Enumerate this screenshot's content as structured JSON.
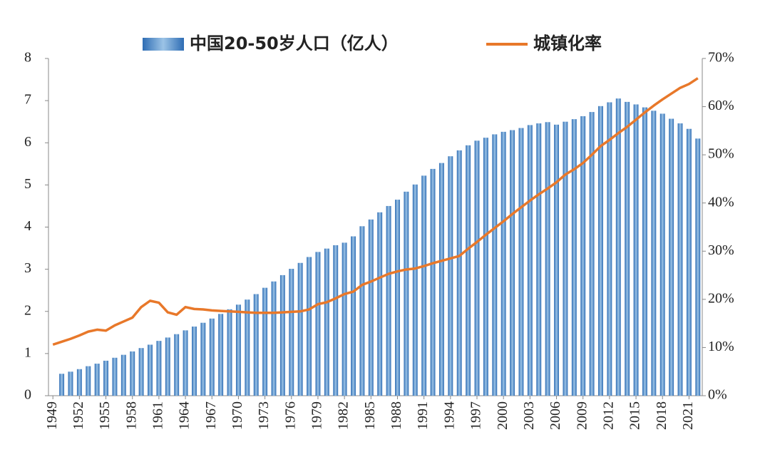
{
  "chart_data": {
    "type": "bar_line",
    "categories": [
      "1949",
      null,
      null,
      "1952",
      null,
      null,
      "1955",
      null,
      null,
      "1958",
      null,
      null,
      "1961",
      null,
      null,
      "1964",
      null,
      null,
      "1967",
      null,
      null,
      "1970",
      null,
      null,
      "1973",
      null,
      null,
      "1976",
      null,
      null,
      "1979",
      null,
      null,
      "1982",
      null,
      null,
      "1985",
      null,
      null,
      "1988",
      null,
      null,
      "1991",
      null,
      null,
      "1994",
      null,
      null,
      "1997",
      null,
      null,
      "2000",
      null,
      null,
      "2003",
      null,
      null,
      "2006",
      null,
      null,
      "2009",
      null,
      null,
      "2012",
      null,
      null,
      "2015",
      null,
      null,
      "2018",
      null,
      null,
      "2021",
      null
    ],
    "series": [
      {
        "name": "中国20-50岁人口（亿人）",
        "type": "bar",
        "color": "#5b9bd5",
        "values": [
          null,
          0.52,
          0.57,
          0.63,
          0.7,
          0.76,
          0.83,
          0.9,
          0.97,
          1.05,
          1.13,
          1.21,
          1.3,
          1.38,
          1.46,
          1.55,
          1.64,
          1.73,
          1.83,
          1.94,
          2.05,
          2.16,
          2.28,
          2.41,
          2.56,
          2.71,
          2.86,
          3.01,
          3.15,
          3.29,
          3.41,
          3.49,
          3.57,
          3.63,
          3.78,
          4.02,
          4.18,
          4.35,
          4.5,
          4.65,
          4.84,
          5.01,
          5.22,
          5.38,
          5.52,
          5.68,
          5.82,
          5.94,
          6.05,
          6.12,
          6.2,
          6.26,
          6.3,
          6.35,
          6.42,
          6.46,
          6.49,
          6.43,
          6.5,
          6.56,
          6.63,
          6.73,
          6.87,
          6.96,
          7.05,
          6.97,
          6.91,
          6.84,
          6.76,
          6.69,
          6.57,
          6.46,
          6.33,
          6.1
        ]
      },
      {
        "name": "城镇化率",
        "type": "line",
        "axis": "y2",
        "color": "#e8782a",
        "values": [
          10.6,
          11.2,
          11.8,
          12.5,
          13.3,
          13.7,
          13.5,
          14.6,
          15.4,
          16.2,
          18.4,
          19.7,
          19.3,
          17.3,
          16.8,
          18.4,
          18.0,
          17.9,
          17.7,
          17.6,
          17.5,
          17.4,
          17.3,
          17.2,
          17.2,
          17.2,
          17.3,
          17.4,
          17.5,
          17.9,
          19.0,
          19.4,
          20.2,
          21.1,
          21.6,
          23.0,
          23.7,
          24.5,
          25.3,
          25.8,
          26.2,
          26.4,
          26.9,
          27.5,
          28.0,
          28.5,
          29.0,
          30.5,
          31.9,
          33.4,
          34.8,
          36.2,
          37.7,
          39.1,
          40.5,
          41.8,
          43.0,
          44.3,
          45.9,
          47.0,
          48.3,
          50.0,
          51.8,
          53.1,
          54.5,
          55.8,
          57.3,
          58.8,
          60.2,
          61.5,
          62.7,
          63.9,
          64.7,
          65.9
        ]
      }
    ],
    "ylim": [
      0,
      8
    ],
    "yticks": [
      0,
      1,
      2,
      3,
      4,
      5,
      6,
      7,
      8
    ],
    "y2lim": [
      0,
      70
    ],
    "y2ticks": [
      {
        "value": 0,
        "label": "0%"
      },
      {
        "value": 10,
        "label": "10%"
      },
      {
        "value": 20,
        "label": "20%"
      },
      {
        "value": 30,
        "label": "30%"
      },
      {
        "value": 40,
        "label": "40%"
      },
      {
        "value": 50,
        "label": "50%"
      },
      {
        "value": 60,
        "label": "60%"
      },
      {
        "value": 70,
        "label": "70%"
      }
    ],
    "legend": "top"
  }
}
